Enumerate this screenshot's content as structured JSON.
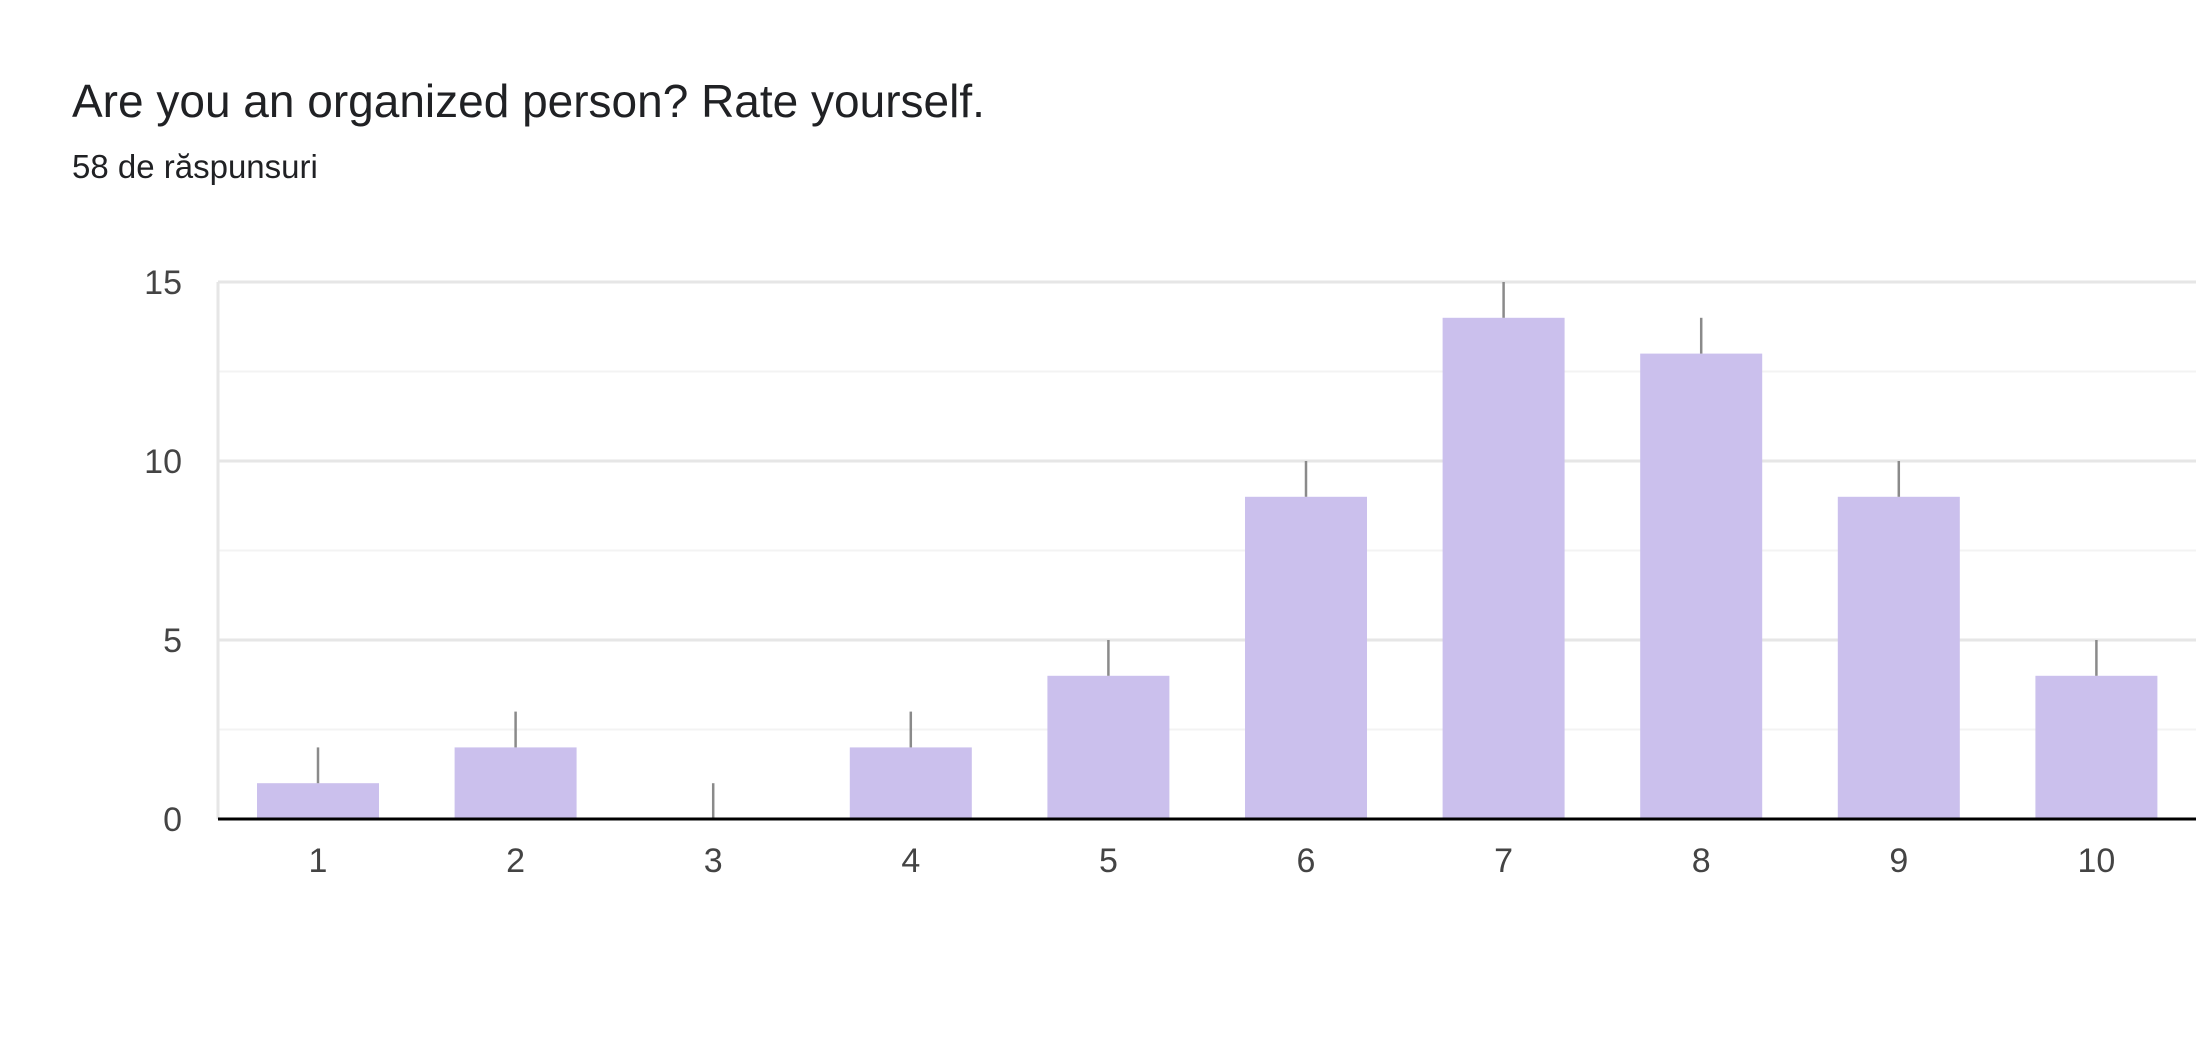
{
  "question": {
    "title": "Are you an organized person? Rate yourself.",
    "responses": "58 de răspunsuri"
  },
  "chart_data": {
    "type": "bar",
    "categories": [
      "1",
      "2",
      "3",
      "4",
      "5",
      "6",
      "7",
      "8",
      "9",
      "10"
    ],
    "values": [
      1,
      2,
      0,
      2,
      4,
      9,
      14,
      13,
      9,
      4
    ],
    "ylim": [
      0,
      15
    ],
    "yticks": [
      0,
      5,
      10,
      15
    ],
    "grid": true,
    "bar_color": "#cbc0ed",
    "grid_color": "#e6e6e6",
    "axis_color": "#000000",
    "label_line_color": "#8a8a8a"
  }
}
